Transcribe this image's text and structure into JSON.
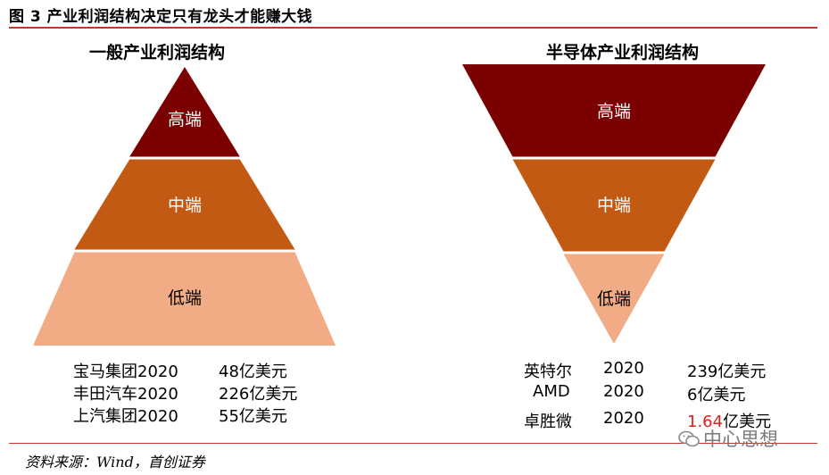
{
  "figure_title": "图 3  产业利润结构决定只有龙头才能赚大钱",
  "left_panel": {
    "title": "一般产业利润结构",
    "tiers": [
      "高端",
      "中端",
      "低端"
    ],
    "rows": [
      {
        "company": "宝马集团2020",
        "value": "48亿美元"
      },
      {
        "company": "丰田汽车2020",
        "value": "226亿美元"
      },
      {
        "company": "上汽集团2020",
        "value": "55亿美元"
      }
    ]
  },
  "right_panel": {
    "title": "半导体产业利润结构",
    "tiers": [
      "高端",
      "中端",
      "低端"
    ],
    "rows": [
      {
        "company": "英特尔",
        "year": "2020",
        "value": "239亿美元"
      },
      {
        "company": "AMD",
        "year": "2020",
        "value": "6亿美元"
      },
      {
        "company": "卓胜微",
        "year": "2020",
        "value": "1.64亿美元"
      }
    ]
  },
  "source": "资料来源：Wind，首创证券",
  "watermark": "中心思想",
  "colors": {
    "top_tier": "#7b0000",
    "mid_tier": "#c35a14",
    "low_tier": "#f2ac85",
    "rule": "#c0392b",
    "highlight": "#e0201f"
  }
}
